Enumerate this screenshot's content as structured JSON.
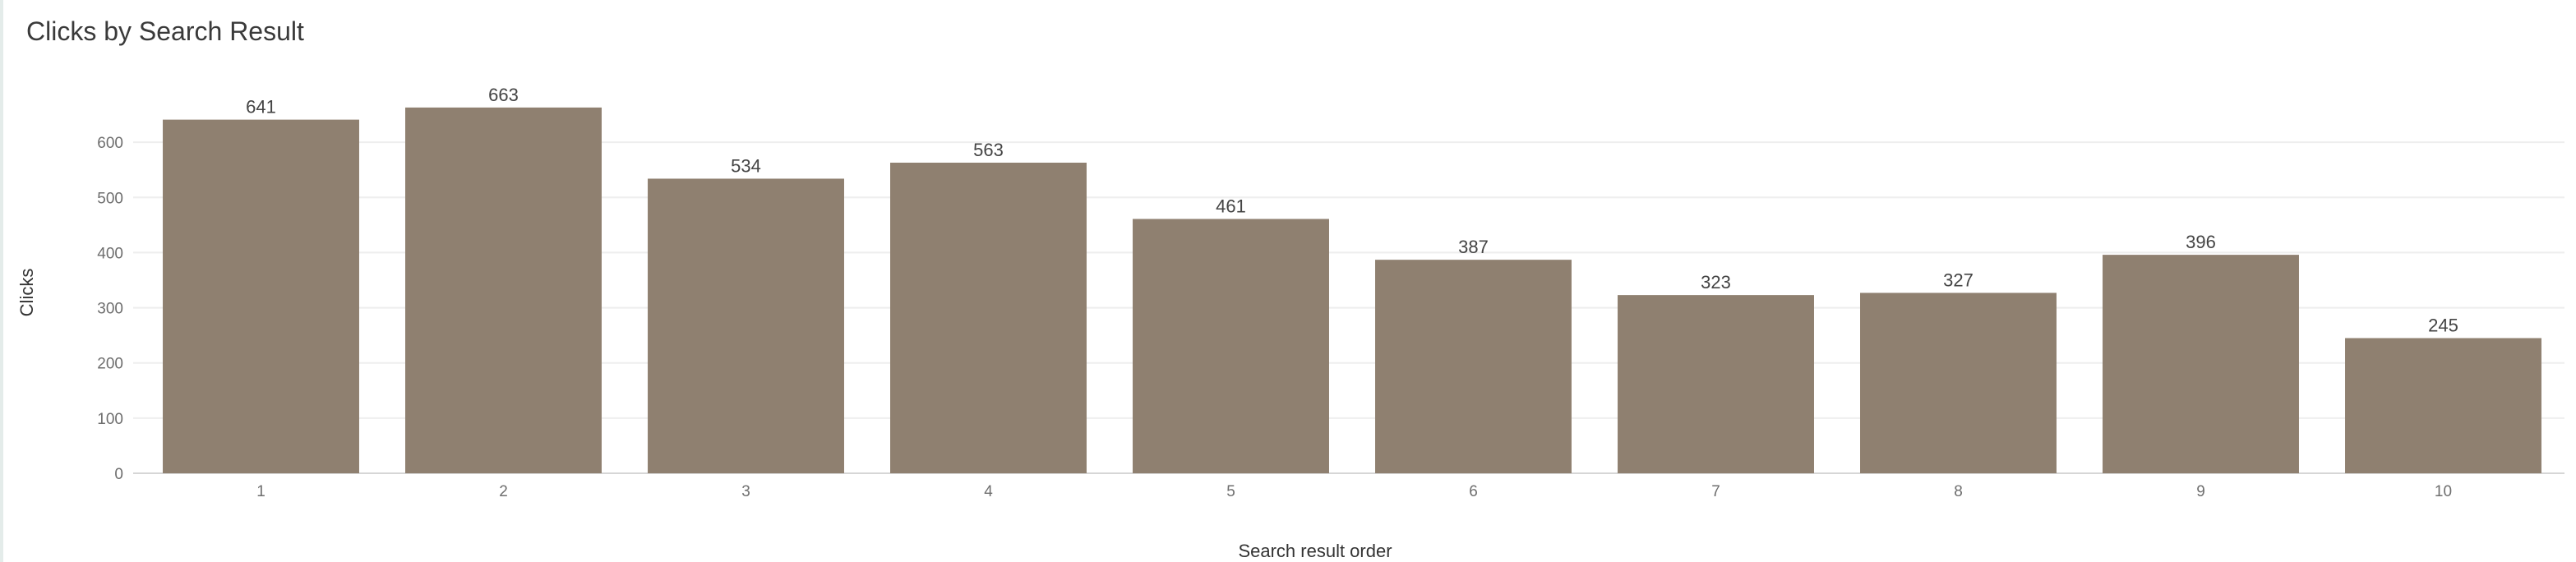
{
  "title": "Clicks by Search Result",
  "colors": {
    "bar": "#8f8070",
    "grid": "#eeeeee",
    "axis": "#d6d6d6"
  },
  "chart_data": {
    "type": "bar",
    "title": "Clicks by Search Result",
    "xlabel": "Search result order",
    "ylabel": "Clicks",
    "categories": [
      "1",
      "2",
      "3",
      "4",
      "5",
      "6",
      "7",
      "8",
      "9",
      "10"
    ],
    "values": [
      641,
      663,
      534,
      563,
      461,
      387,
      323,
      327,
      396,
      245
    ],
    "yticks": [
      0,
      100,
      200,
      300,
      400,
      500,
      600
    ],
    "ylim": [
      0,
      700
    ],
    "grid": true,
    "data_labels": true
  }
}
